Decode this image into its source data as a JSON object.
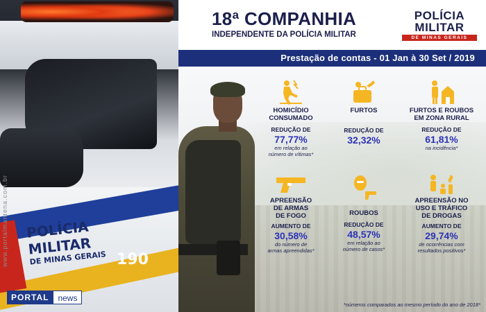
{
  "photo": {
    "car_text_line1": "POLÍCIA",
    "car_text_line2": "MILITAR",
    "car_text_line3": "DE MINAS GERAIS",
    "car_number": "190",
    "watermark": "www.portalmantena.com.br",
    "portal_label": "PORTAL",
    "news_label": "news"
  },
  "header": {
    "title": "18ª COMPANHIA",
    "subtitle": "INDEPENDENTE DA POLÍCIA MILITAR",
    "logo_line1": "POLÍCIA",
    "logo_line2": "MILITAR",
    "logo_line3": "DE MINAS GERAIS",
    "banner": "Prestação de contas - 01 Jan à 30 Set / 2019"
  },
  "colors": {
    "navy": "#1c2f7a",
    "accent_blue": "#2b33b5",
    "icon_yellow": "#f5b623",
    "logo_red": "#c8261d"
  },
  "stats": [
    {
      "icon": "homicide-icon",
      "label1": "HOMICÍDIO",
      "label2": "CONSUMADO",
      "label3": "",
      "pre": "REDUÇÃO DE",
      "value": "77,77%",
      "note1": "em relação ao",
      "note2": "número de vítimas*"
    },
    {
      "icon": "theft-icon",
      "label1": "FURTOS",
      "label2": "",
      "label3": "",
      "pre": "REDUÇÃO DE",
      "value": "32,32%",
      "note1": "",
      "note2": ""
    },
    {
      "icon": "rural-icon",
      "label1": "FURTOS E ROUBOS",
      "label2": "EM ZONA RURAL",
      "label3": "",
      "pre": "REDUÇÃO DE",
      "value": "61,81%",
      "note1": "na incidência*",
      "note2": ""
    },
    {
      "icon": "gun-icon",
      "label1": "APREENSÃO",
      "label2": "DE ARMAS",
      "label3": "DE FOGO",
      "pre": "AUMENTO DE",
      "value": "30,58%",
      "note1": "do número de",
      "note2": "armas apreendidas*"
    },
    {
      "icon": "robbery-icon",
      "label1": "ROUBOS",
      "label2": "",
      "label3": "",
      "pre": "REDUÇÃO DE",
      "value": "48,57%",
      "note1": "em relação ao",
      "note2": "número de casos*"
    },
    {
      "icon": "drugs-icon",
      "label1": "APREENSÃO NO",
      "label2": "USO E TRÁFICO",
      "label3": "DE DROGAS",
      "pre": "AUMENTO DE",
      "value": "29,74%",
      "note1": "de ocorrências com",
      "note2": "resultados positivos*"
    }
  ],
  "footnote": "*números comparados ao mesmo período do ano de 2018*"
}
